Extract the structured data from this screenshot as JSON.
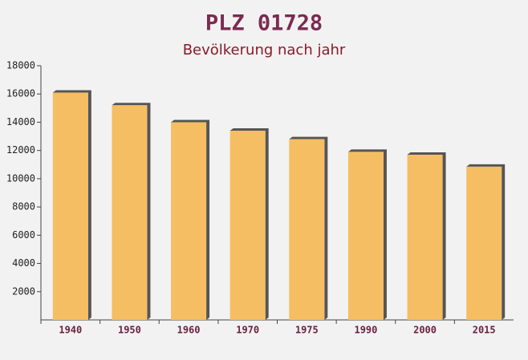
{
  "chart_data": {
    "type": "bar",
    "title": "PLZ 01728",
    "subtitle": "Bevölkerung nach jahr",
    "categories": [
      "1940",
      "1950",
      "1960",
      "1970",
      "1975",
      "1990",
      "2000",
      "2015"
    ],
    "values": [
      16100,
      15200,
      14000,
      13400,
      12800,
      11900,
      11700,
      10850
    ],
    "color": "#f5be62",
    "ylim": [
      0,
      18000
    ],
    "yticks": [
      2000,
      4000,
      6000,
      8000,
      10000,
      12000,
      14000,
      16000,
      18000
    ],
    "grid": false
  }
}
